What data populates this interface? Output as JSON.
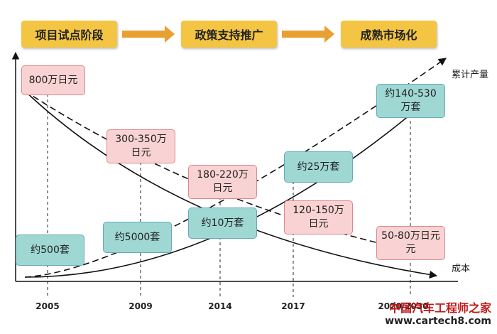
{
  "stages": [
    "项目试点阶段",
    "政策支持推广",
    "成熟市场化"
  ],
  "cost_labels": [
    [
      "800万日元"
    ],
    [
      "300-350万",
      "日元"
    ],
    [
      "180-220万",
      "日元"
    ],
    [
      "120-150万",
      "日元"
    ],
    [
      "50-80万日元",
      "元"
    ]
  ],
  "volume_labels": [
    [
      "约500套"
    ],
    [
      "约5000套"
    ],
    [
      "约10万套"
    ],
    [
      "约25万套"
    ],
    [
      "约140-530",
      "万套"
    ]
  ],
  "years": [
    "2005",
    "2009",
    "2014",
    "2017",
    "2020/2030"
  ],
  "axis_labels": {
    "volume": "累计产量",
    "cost": "成本"
  },
  "watermark": {
    "name": "中国汽车工程师之家",
    "url": "www.cartech8.com"
  }
}
